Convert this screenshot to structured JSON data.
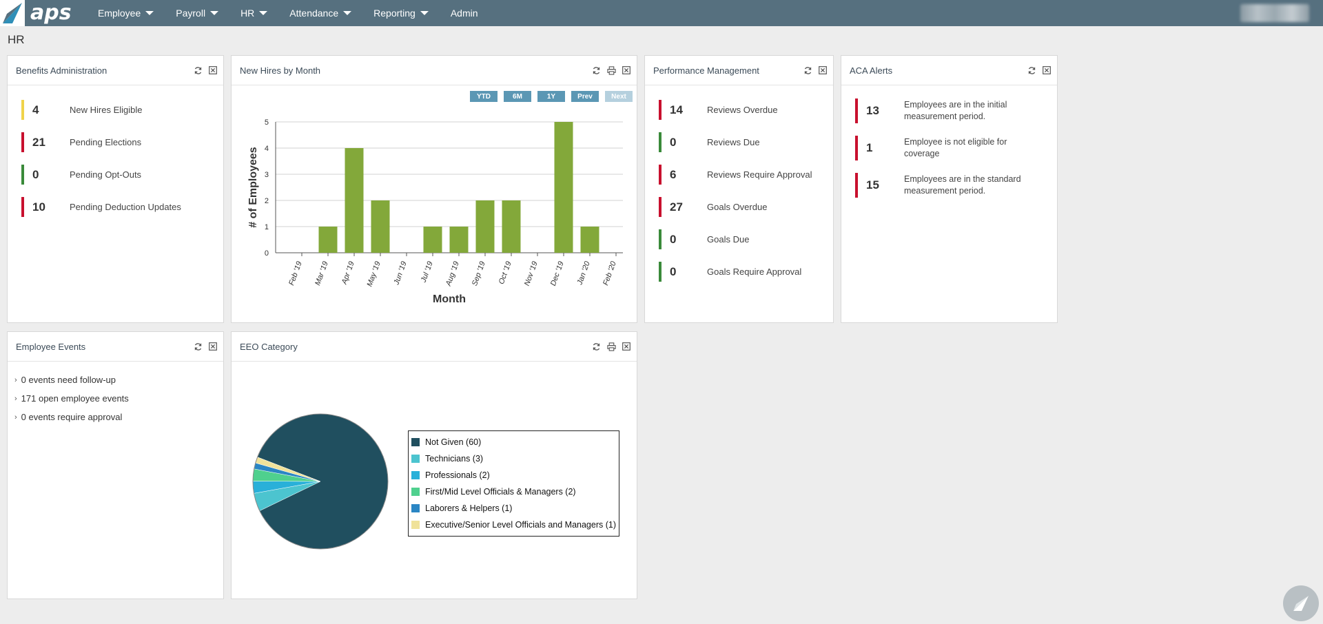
{
  "app": {
    "logo_text": "aps",
    "page_title": "HR"
  },
  "colors": {
    "topbar": "#56707f",
    "accent_blue": "#5b97b4",
    "bar_green": "#83a83a",
    "red": "#c8102e",
    "green": "#3a8a3a",
    "yellow": "#f0d34a"
  },
  "nav": [
    {
      "label": "Employee",
      "has_caret": true
    },
    {
      "label": "Payroll",
      "has_caret": true
    },
    {
      "label": "HR",
      "has_caret": true
    },
    {
      "label": "Attendance",
      "has_caret": true
    },
    {
      "label": "Reporting",
      "has_caret": true
    },
    {
      "label": "Admin",
      "has_caret": false
    }
  ],
  "benefits": {
    "title": "Benefits Administration",
    "items": [
      {
        "value": "4",
        "label": "New Hires Eligible",
        "status": "yellow"
      },
      {
        "value": "21",
        "label": "Pending Elections",
        "status": "red"
      },
      {
        "value": "0",
        "label": "Pending Opt-Outs",
        "status": "green"
      },
      {
        "value": "10",
        "label": "Pending Deduction Updates",
        "status": "red"
      }
    ]
  },
  "new_hires": {
    "title": "New Hires by Month",
    "buttons": [
      {
        "label": "YTD",
        "enabled": true
      },
      {
        "label": "6M",
        "enabled": true
      },
      {
        "label": "1Y",
        "enabled": true
      },
      {
        "label": "Prev",
        "enabled": true
      },
      {
        "label": "Next",
        "enabled": false
      }
    ]
  },
  "chart_data": {
    "type": "bar",
    "categories": [
      "Feb '19",
      "Mar '19",
      "Apr '19",
      "May '19",
      "Jun '19",
      "Jul '19",
      "Aug '19",
      "Sep '19",
      "Oct '19",
      "Nov '19",
      "Dec '19",
      "Jan '20",
      "Feb '20"
    ],
    "values": [
      0,
      1,
      4,
      2,
      0,
      1,
      1,
      2,
      2,
      0,
      5,
      1,
      0
    ],
    "xlabel": "Month",
    "ylabel": "# of Employees",
    "ylim": [
      0,
      5
    ],
    "yticks": [
      "0",
      "1",
      "2",
      "3",
      "4",
      "5"
    ],
    "grid": true,
    "color": "#83a83a"
  },
  "performance": {
    "title": "Performance Management",
    "items": [
      {
        "value": "14",
        "label": "Reviews Overdue",
        "status": "red"
      },
      {
        "value": "0",
        "label": "Reviews Due",
        "status": "green"
      },
      {
        "value": "6",
        "label": "Reviews Require Approval",
        "status": "red"
      },
      {
        "value": "27",
        "label": "Goals Overdue",
        "status": "red"
      },
      {
        "value": "0",
        "label": "Goals Due",
        "status": "green"
      },
      {
        "value": "0",
        "label": "Goals Require Approval",
        "status": "green"
      }
    ]
  },
  "aca": {
    "title": "ACA Alerts",
    "items": [
      {
        "value": "13",
        "label": "Employees are in the initial measurement period."
      },
      {
        "value": "1",
        "label": "Employee is not eligible for coverage"
      },
      {
        "value": "15",
        "label": "Employees are in the standard measurement period."
      }
    ]
  },
  "events": {
    "title": "Employee Events",
    "items": [
      {
        "label": "0 events need follow-up"
      },
      {
        "label": "171 open employee events"
      },
      {
        "label": "0 events require approval"
      }
    ]
  },
  "eeo": {
    "title": "EEO Category",
    "slices": [
      {
        "label": "Not Given (60)",
        "value": 60,
        "color": "#204f5f"
      },
      {
        "label": "Technicians (3)",
        "value": 3,
        "color": "#4cc4cf"
      },
      {
        "label": "Professionals (2)",
        "value": 2,
        "color": "#29b0d9"
      },
      {
        "label": "First/Mid Level Officials & Managers (2)",
        "value": 2,
        "color": "#4fd08e"
      },
      {
        "label": "Laborers & Helpers (1)",
        "value": 1,
        "color": "#2b86c4"
      },
      {
        "label": "Executive/Senior Level Officials and Managers (1)",
        "value": 1,
        "color": "#f0e29a"
      }
    ]
  }
}
